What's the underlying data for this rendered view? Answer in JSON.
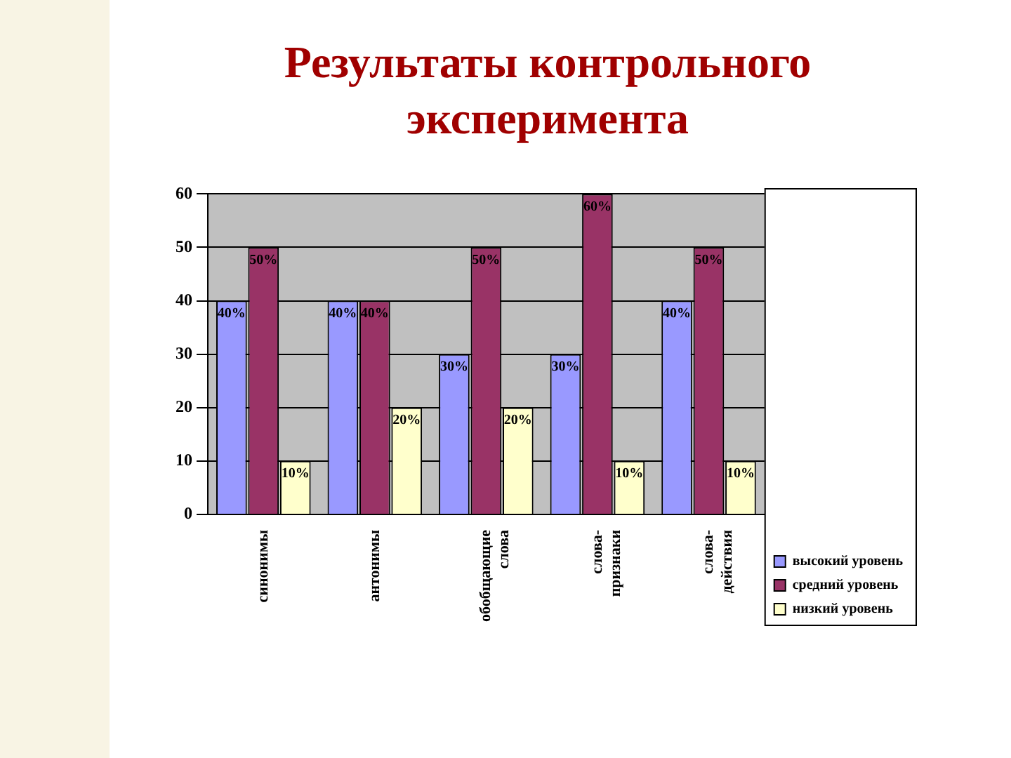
{
  "chart_data": {
    "type": "bar",
    "title": "Результаты контрольного эксперимента",
    "categories": [
      "синонимы",
      "антонимы",
      "обобщающие слова",
      "слова-признаки",
      "слова-действия"
    ],
    "series": [
      {
        "name": "высокий уровень",
        "color": "#9999ff",
        "values": [
          40,
          40,
          30,
          30,
          40
        ],
        "value_labels": [
          "40%",
          "40%",
          "30%",
          "30%",
          "40%"
        ]
      },
      {
        "name": "средний уровень",
        "color": "#993366",
        "values": [
          50,
          40,
          50,
          60,
          50
        ],
        "value_labels": [
          "50%",
          "40%",
          "50%",
          "60%",
          "50%"
        ]
      },
      {
        "name": "низкий уровень",
        "color": "#ffffcc",
        "values": [
          10,
          20,
          20,
          10,
          10
        ],
        "value_labels": [
          "10%",
          "20%",
          "20%",
          "10%",
          "10%"
        ]
      }
    ],
    "ylim": [
      0,
      60
    ],
    "yticks": [
      0,
      10,
      20,
      30,
      40,
      50,
      60
    ],
    "grid": "y",
    "legend": "bottom right"
  }
}
